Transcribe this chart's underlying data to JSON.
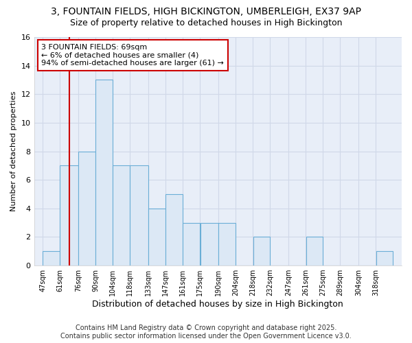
{
  "title": "3, FOUNTAIN FIELDS, HIGH BICKINGTON, UMBERLEIGH, EX37 9AP",
  "subtitle": "Size of property relative to detached houses in High Bickington",
  "xlabel": "Distribution of detached houses by size in High Bickington",
  "ylabel": "Number of detached properties",
  "bar_color": "#dce8f5",
  "bar_edgecolor": "#6aaed6",
  "bins": [
    47,
    61,
    76,
    90,
    104,
    118,
    133,
    147,
    161,
    175,
    190,
    204,
    218,
    232,
    247,
    261,
    275,
    289,
    304,
    318,
    332
  ],
  "counts": [
    1,
    7,
    8,
    13,
    7,
    7,
    4,
    5,
    3,
    3,
    3,
    0,
    2,
    0,
    0,
    2,
    0,
    0,
    0,
    1
  ],
  "vline_x": 69,
  "vline_color": "#cc0000",
  "annotation_text": "3 FOUNTAIN FIELDS: 69sqm\n← 6% of detached houses are smaller (4)\n94% of semi-detached houses are larger (61) →",
  "annotation_box_color": "#ffffff",
  "annotation_box_edgecolor": "#cc0000",
  "ylim": [
    0,
    16
  ],
  "yticks": [
    0,
    2,
    4,
    6,
    8,
    10,
    12,
    14,
    16
  ],
  "plot_bg_color": "#e8eef8",
  "fig_bg_color": "#ffffff",
  "grid_color": "#d0d8e8",
  "footer_line1": "Contains HM Land Registry data © Crown copyright and database right 2025.",
  "footer_line2": "Contains public sector information licensed under the Open Government Licence v3.0.",
  "title_fontsize": 10,
  "subtitle_fontsize": 9,
  "xlabel_fontsize": 9,
  "ylabel_fontsize": 8,
  "tick_fontsize": 7,
  "annotation_fontsize": 8,
  "footer_fontsize": 7
}
